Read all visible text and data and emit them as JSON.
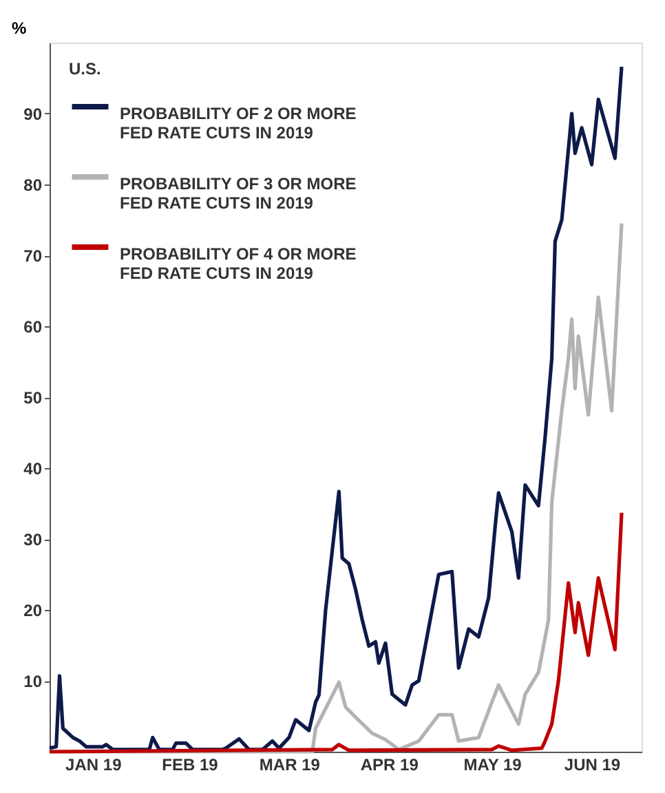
{
  "chart_data": {
    "type": "line",
    "ylabel": "%",
    "legend_title": "U.S.",
    "legend": "top left",
    "grid": false,
    "line_style": "solid",
    "marker": "none",
    "ylim": [
      0,
      100
    ],
    "yticks": [
      10,
      20,
      30,
      40,
      50,
      60,
      70,
      80,
      90
    ],
    "xlim": [
      "2019-01-03",
      "2019-06-30"
    ],
    "xticks": [
      {
        "value": "2019-01-16",
        "label": "JAN 19"
      },
      {
        "value": "2019-02-14",
        "label": "FEB 19"
      },
      {
        "value": "2019-03-16",
        "label": "MAR 19"
      },
      {
        "value": "2019-04-15",
        "label": "APR 19"
      },
      {
        "value": "2019-05-16",
        "label": "MAY 19"
      },
      {
        "value": "2019-06-15",
        "label": "JUN 19"
      }
    ],
    "series": [
      {
        "name": "PROBABILITY OF 2 OR MORE FED RATE CUTS IN 2019",
        "color": "#0d1a4a",
        "x": [
          "2019-01-03",
          "2019-01-05",
          "2019-01-06",
          "2019-01-07",
          "2019-01-10",
          "2019-01-12",
          "2019-01-14",
          "2019-01-19",
          "2019-01-20",
          "2019-01-22",
          "2019-02-02",
          "2019-02-03",
          "2019-02-05",
          "2019-02-09",
          "2019-02-10",
          "2019-02-13",
          "2019-02-15",
          "2019-02-24",
          "2019-02-25",
          "2019-03-01",
          "2019-03-04",
          "2019-03-08",
          "2019-03-11",
          "2019-03-13",
          "2019-03-16",
          "2019-03-18",
          "2019-03-22",
          "2019-03-24",
          "2019-03-25",
          "2019-03-27",
          "2019-03-29",
          "2019-03-31",
          "2019-04-01",
          "2019-04-03",
          "2019-04-05",
          "2019-04-07",
          "2019-04-09",
          "2019-04-11",
          "2019-04-12",
          "2019-04-14",
          "2019-04-16",
          "2019-04-20",
          "2019-04-22",
          "2019-04-24",
          "2019-04-28",
          "2019-04-30",
          "2019-05-04",
          "2019-05-06",
          "2019-05-09",
          "2019-05-12",
          "2019-05-15",
          "2019-05-17",
          "2019-05-18",
          "2019-05-22",
          "2019-05-24",
          "2019-05-26",
          "2019-05-30",
          "2019-06-01",
          "2019-06-03",
          "2019-06-04",
          "2019-06-06",
          "2019-06-09",
          "2019-06-10",
          "2019-06-12",
          "2019-06-15",
          "2019-06-17",
          "2019-06-22",
          "2019-06-24"
        ],
        "values": [
          0.5,
          0.7,
          10.7,
          3.3,
          2,
          1.5,
          0.7,
          0.7,
          1,
          0.3,
          0.3,
          2,
          0.3,
          0.3,
          1.2,
          1.2,
          0.3,
          0.3,
          0.5,
          1.8,
          0.3,
          0.3,
          1.5,
          0.5,
          2,
          4.5,
          3,
          7,
          8,
          20,
          28.4,
          36.7,
          27.3,
          26.5,
          22.9,
          18.6,
          14.9,
          15.5,
          12.5,
          15.3,
          8.1,
          6.6,
          9.4,
          10,
          20,
          25,
          25.4,
          11.8,
          17.3,
          16.2,
          21.7,
          31.9,
          36.5,
          31,
          24.5,
          37.6,
          34.7,
          44.4,
          55.5,
          72,
          75,
          90,
          84.4,
          88,
          82.8,
          92,
          83.7,
          96.6
        ]
      },
      {
        "name": "PROBABILITY OF 3 OR MORE FED RATE CUTS IN 2019",
        "color": "#b3b3b3",
        "x": [
          "2019-01-03",
          "2019-03-23",
          "2019-03-24",
          "2019-03-28",
          "2019-03-31",
          "2019-04-02",
          "2019-04-06",
          "2019-04-10",
          "2019-04-14",
          "2019-04-18",
          "2019-04-24",
          "2019-04-30",
          "2019-05-04",
          "2019-05-06",
          "2019-05-12",
          "2019-05-16",
          "2019-05-18",
          "2019-05-24",
          "2019-05-26",
          "2019-05-30",
          "2019-06-02",
          "2019-06-03",
          "2019-06-06",
          "2019-06-08",
          "2019-06-09",
          "2019-06-10",
          "2019-06-11",
          "2019-06-14",
          "2019-06-17",
          "2019-06-21",
          "2019-06-24"
        ],
        "values": [
          0,
          0,
          3.3,
          7,
          9.8,
          6.3,
          4.4,
          2.6,
          1.7,
          0.3,
          1.5,
          5.2,
          5.2,
          1.5,
          2,
          7,
          9.4,
          3.9,
          8.1,
          11.2,
          18.6,
          35.2,
          48.1,
          55.5,
          61,
          51.2,
          58.6,
          47.5,
          64.1,
          48.1,
          74.5
        ]
      },
      {
        "name": "PROBABILITY OF 4 OR MORE FED RATE CUTS IN 2019",
        "color": "#c00000",
        "x": [
          "2019-01-03",
          "2019-03-29",
          "2019-03-31",
          "2019-04-03",
          "2019-05-16",
          "2019-05-18",
          "2019-05-22",
          "2019-05-31",
          "2019-06-01",
          "2019-06-03",
          "2019-06-05",
          "2019-06-08",
          "2019-06-10",
          "2019-06-11",
          "2019-06-14",
          "2019-06-17",
          "2019-06-22",
          "2019-06-24"
        ],
        "values": [
          0,
          0.3,
          1,
          0.2,
          0.3,
          0.8,
          0.2,
          0.5,
          1.5,
          3.9,
          10,
          23.8,
          16.8,
          21,
          13.6,
          24.5,
          14.4,
          33.7
        ]
      }
    ]
  }
}
